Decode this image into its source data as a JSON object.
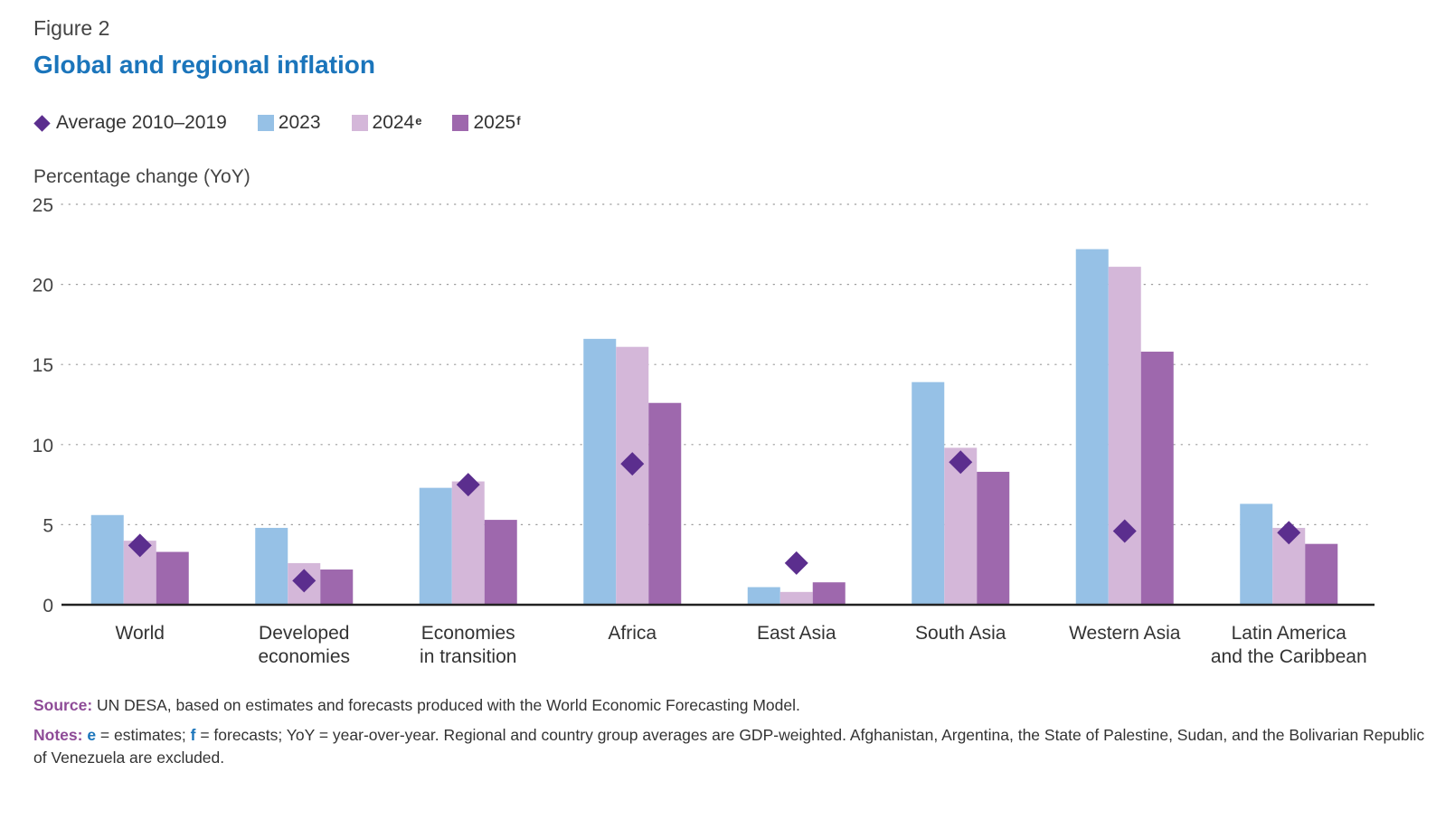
{
  "figure_label": "Figure 2",
  "title": "Global and regional inflation",
  "legend": {
    "avg": "Average 2010–2019",
    "y2023": "2023",
    "y2024": "2024",
    "y2024_sup": "e",
    "y2025": "2025",
    "y2025_sup": "f"
  },
  "colors": {
    "avg": "#5b2e8e",
    "y2023": "#96c1e6",
    "y2024": "#d4b7d9",
    "y2025": "#9e68ad",
    "title": "#1b75bb",
    "source_label": "#8e4b97"
  },
  "chart_data": {
    "type": "bar",
    "title": "Global and regional inflation",
    "ylabel": "Percentage change (YoY)",
    "xlabel": "",
    "ylim": [
      0,
      25
    ],
    "yticks": [
      0,
      5,
      10,
      15,
      20,
      25
    ],
    "grid": true,
    "legend_position": "top-left",
    "categories": [
      [
        "World"
      ],
      [
        "Developed",
        "economies"
      ],
      [
        "Economies",
        "in transition"
      ],
      [
        "Africa"
      ],
      [
        "East Asia"
      ],
      [
        "South Asia"
      ],
      [
        "Western Asia"
      ],
      [
        "Latin America",
        "and the Caribbean"
      ]
    ],
    "series": [
      {
        "name": "2023",
        "values": [
          5.6,
          4.8,
          7.3,
          16.6,
          1.1,
          13.9,
          22.2,
          6.3
        ]
      },
      {
        "name": "2024e",
        "values": [
          4.0,
          2.6,
          7.7,
          16.1,
          0.8,
          9.8,
          21.1,
          4.8
        ]
      },
      {
        "name": "2025f",
        "values": [
          3.3,
          2.2,
          5.3,
          12.6,
          1.4,
          8.3,
          15.8,
          3.8
        ]
      }
    ],
    "markers": {
      "name": "Average 2010–2019",
      "values": [
        3.7,
        1.5,
        7.5,
        8.8,
        2.6,
        8.9,
        4.6,
        4.5
      ]
    }
  },
  "source": {
    "label": "Source:",
    "text": " UN DESA, based on estimates and forecasts produced with the World Economic Forecasting Model."
  },
  "notes": {
    "label": "Notes:",
    "e": "e",
    "e_text": " = estimates; ",
    "f": "f",
    "f_text": " = forecasts; YoY = year-over-year. Regional and country group averages are GDP-weighted. Afghanistan, Argentina, the State of Palestine, Sudan, and the Bolivarian Republic of Venezuela are excluded."
  }
}
